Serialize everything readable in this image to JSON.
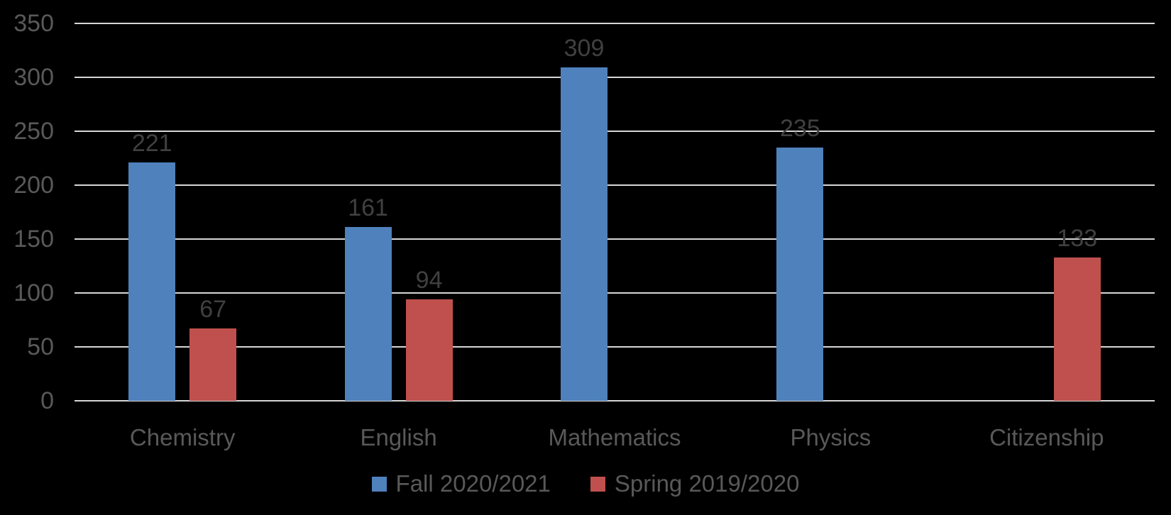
{
  "chart_data": {
    "type": "bar",
    "title": "",
    "xlabel": "",
    "ylabel": "",
    "categories": [
      "Chemistry",
      "English",
      "Mathematics",
      "Physics",
      "Citizenship"
    ],
    "series": [
      {
        "name": "Fall 2020/2021",
        "color": "#4F81BD",
        "values": [
          221,
          161,
          309,
          235,
          null
        ]
      },
      {
        "name": "Spring 2019/2020",
        "color": "#C0504D",
        "values": [
          67,
          94,
          null,
          null,
          133
        ]
      }
    ],
    "ylim": [
      0,
      350
    ],
    "yticks": [
      0,
      50,
      100,
      150,
      200,
      250,
      300,
      350
    ],
    "grid": true,
    "data_labels": true,
    "legend_position": "bottom"
  },
  "style_colors": {
    "background": "#000000",
    "gridline": "#D6D6D6",
    "axis_text": "#595959",
    "category_text": "#595959",
    "legend_text": "#595959",
    "data_label_text": "#404040"
  }
}
